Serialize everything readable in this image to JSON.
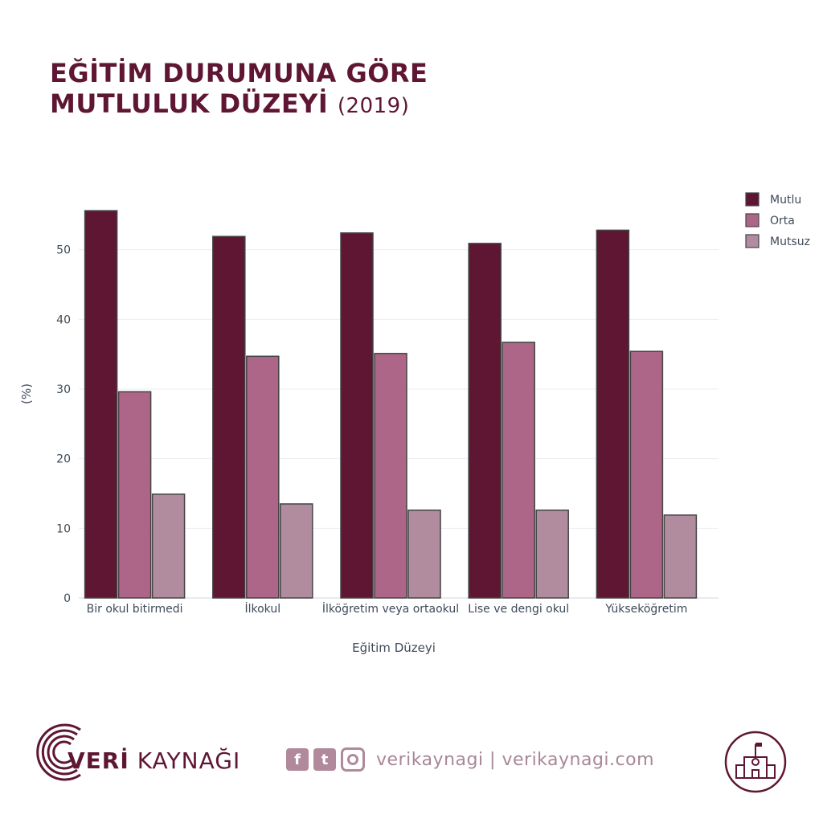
{
  "title": {
    "line1": "EĞİTİM DURUMUNA GÖRE",
    "line2": "MUTLULUK DÜZEYİ",
    "year": "(2019)"
  },
  "chart_data": {
    "type": "bar",
    "categories": [
      "Bir okul bitirmedi",
      "İlkokul",
      "İlköğretim veya ortaokul",
      "Lise ve dengi okul",
      "Yükseköğretim"
    ],
    "series": [
      {
        "name": "Mutlu",
        "color": "#5e1633",
        "values": [
          55.6,
          51.9,
          52.4,
          50.9,
          52.8
        ]
      },
      {
        "name": "Orta",
        "color": "#ad6687",
        "values": [
          29.6,
          34.7,
          35.1,
          36.7,
          35.4
        ]
      },
      {
        "name": "Mutsuz",
        "color": "#b18c9e",
        "values": [
          14.9,
          13.5,
          12.6,
          12.6,
          11.9
        ]
      }
    ],
    "xlabel": "Eğitim Düzeyi",
    "ylabel": "(%)",
    "ylim": [
      0,
      57
    ],
    "yticks": [
      0,
      10,
      20,
      30,
      40,
      50
    ],
    "grid": true,
    "legend": "top-right"
  },
  "footer": {
    "brand_bold": "VERİ",
    "brand_rest": "KAYNAĞI",
    "facebook_glyph": "f",
    "twitter_glyph": "t",
    "social_text": "verikaynagi | verikaynagi.com",
    "icons": [
      "facebook-icon",
      "twitter-icon",
      "instagram-icon",
      "school-icon"
    ]
  }
}
